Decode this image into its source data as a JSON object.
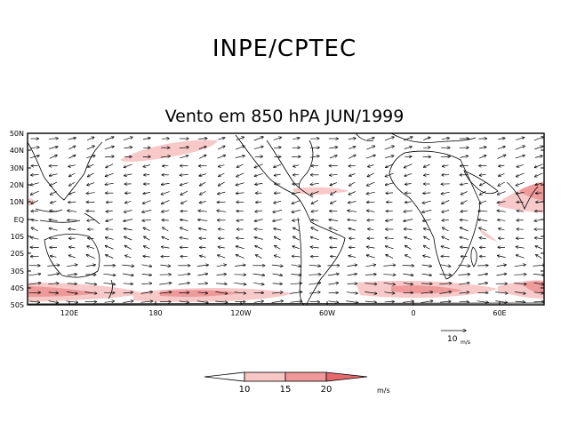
{
  "header": {
    "agency": "INPE/CPTEC"
  },
  "map": {
    "title": "Vento em 850 hPA JUN/1999",
    "lat_labels": [
      "50N",
      "40N",
      "30N",
      "20N",
      "10N",
      "EQ",
      "10S",
      "20S",
      "30S",
      "40S",
      "50S"
    ],
    "lon_labels": [
      "120E",
      "180",
      "120W",
      "60W",
      "0",
      "60E"
    ],
    "reference_vector": {
      "value": "10",
      "unit": "m/s"
    }
  },
  "colorbar": {
    "ticks": [
      "10",
      "15",
      "20"
    ],
    "unit": "m/s",
    "colors": [
      "#ffffff",
      "#f9c6c6",
      "#f19898",
      "#e56a6a"
    ]
  },
  "colors": {
    "land_line": "#000000",
    "shade": "#f7c9c9"
  }
}
